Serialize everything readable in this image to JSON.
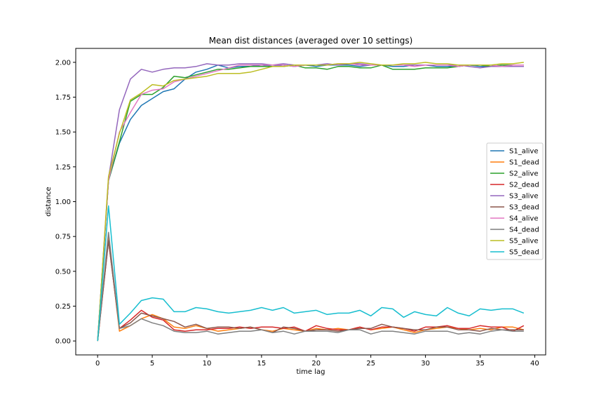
{
  "chart_data": {
    "type": "line",
    "title": "Mean dist distances (averaged over 10 settings)",
    "xlabel": "time lag",
    "ylabel": "distance",
    "xlim": [
      -2,
      41
    ],
    "ylim": [
      -0.1,
      2.1
    ],
    "xticks": [
      0,
      5,
      10,
      15,
      20,
      25,
      30,
      35,
      40
    ],
    "yticks": [
      0.0,
      0.25,
      0.5,
      0.75,
      1.0,
      1.25,
      1.5,
      1.75,
      2.0
    ],
    "ytick_labels": [
      "0.00",
      "0.25",
      "0.50",
      "0.75",
      "1.00",
      "1.25",
      "1.50",
      "1.75",
      "2.00"
    ],
    "grid": false,
    "legend_position": "right",
    "x": [
      0,
      1,
      2,
      3,
      4,
      5,
      6,
      7,
      8,
      9,
      10,
      11,
      12,
      13,
      14,
      15,
      16,
      17,
      18,
      19,
      20,
      21,
      22,
      23,
      24,
      25,
      26,
      27,
      28,
      29,
      30,
      31,
      32,
      33,
      34,
      35,
      36,
      37,
      38,
      39
    ],
    "series": [
      {
        "name": "S1_alive",
        "color": "#1f77b4",
        "values": [
          0.0,
          1.15,
          1.42,
          1.59,
          1.69,
          1.74,
          1.79,
          1.81,
          1.88,
          1.93,
          1.95,
          1.98,
          1.96,
          1.97,
          1.97,
          1.98,
          1.97,
          1.98,
          1.97,
          1.98,
          1.97,
          1.98,
          1.98,
          1.98,
          1.97,
          1.98,
          1.98,
          1.97,
          1.97,
          1.98,
          1.98,
          1.97,
          1.97,
          1.97,
          1.98,
          1.97,
          1.97,
          1.98,
          1.97,
          1.97
        ]
      },
      {
        "name": "S1_dead",
        "color": "#ff7f0e",
        "values": [
          0.0,
          0.74,
          0.07,
          0.11,
          0.16,
          0.19,
          0.16,
          0.1,
          0.09,
          0.11,
          0.09,
          0.07,
          0.08,
          0.09,
          0.1,
          0.08,
          0.07,
          0.09,
          0.08,
          0.07,
          0.09,
          0.08,
          0.09,
          0.08,
          0.1,
          0.08,
          0.09,
          0.1,
          0.08,
          0.06,
          0.08,
          0.09,
          0.1,
          0.09,
          0.08,
          0.09,
          0.08,
          0.1,
          0.1,
          0.08
        ]
      },
      {
        "name": "S2_alive",
        "color": "#2ca02c",
        "values": [
          0.0,
          1.15,
          1.43,
          1.72,
          1.77,
          1.77,
          1.82,
          1.9,
          1.89,
          1.91,
          1.93,
          1.95,
          1.95,
          1.96,
          1.97,
          1.97,
          1.97,
          1.97,
          1.98,
          1.96,
          1.96,
          1.95,
          1.97,
          1.97,
          1.96,
          1.96,
          1.98,
          1.95,
          1.95,
          1.95,
          1.96,
          1.96,
          1.96,
          1.97,
          1.98,
          1.98,
          1.97,
          1.98,
          1.98,
          1.98
        ]
      },
      {
        "name": "S2_dead",
        "color": "#d62728",
        "values": [
          0.0,
          0.72,
          0.09,
          0.15,
          0.22,
          0.17,
          0.15,
          0.08,
          0.07,
          0.08,
          0.08,
          0.09,
          0.09,
          0.1,
          0.09,
          0.1,
          0.1,
          0.09,
          0.1,
          0.07,
          0.11,
          0.09,
          0.08,
          0.08,
          0.1,
          0.08,
          0.1,
          0.1,
          0.09,
          0.07,
          0.1,
          0.1,
          0.11,
          0.09,
          0.09,
          0.11,
          0.1,
          0.1,
          0.07,
          0.11
        ]
      },
      {
        "name": "S3_alive",
        "color": "#9467bd",
        "values": [
          0.0,
          1.17,
          1.66,
          1.88,
          1.95,
          1.93,
          1.95,
          1.96,
          1.96,
          1.97,
          1.99,
          1.98,
          1.98,
          1.99,
          1.99,
          1.99,
          1.98,
          1.99,
          1.98,
          1.98,
          1.98,
          1.99,
          1.98,
          1.99,
          1.99,
          1.98,
          1.98,
          1.98,
          1.98,
          1.98,
          1.98,
          1.98,
          1.98,
          1.98,
          1.97,
          1.96,
          1.97,
          1.97,
          1.97,
          1.97
        ]
      },
      {
        "name": "S3_dead",
        "color": "#8c564b",
        "values": [
          0.0,
          0.72,
          0.09,
          0.13,
          0.2,
          0.18,
          0.16,
          0.14,
          0.1,
          0.12,
          0.09,
          0.1,
          0.1,
          0.09,
          0.1,
          0.08,
          0.06,
          0.1,
          0.09,
          0.07,
          0.08,
          0.08,
          0.07,
          0.08,
          0.09,
          0.09,
          0.12,
          0.1,
          0.09,
          0.08,
          0.08,
          0.1,
          0.1,
          0.08,
          0.08,
          0.07,
          0.09,
          0.08,
          0.08,
          0.08
        ]
      },
      {
        "name": "S4_alive",
        "color": "#e377c2",
        "values": [
          0.0,
          1.15,
          1.5,
          1.64,
          1.77,
          1.8,
          1.81,
          1.86,
          1.88,
          1.9,
          1.92,
          1.94,
          1.96,
          1.98,
          1.98,
          1.98,
          1.98,
          1.98,
          1.97,
          1.98,
          1.98,
          1.98,
          1.99,
          1.99,
          1.98,
          1.98,
          1.98,
          1.98,
          1.98,
          1.97,
          1.98,
          1.98,
          1.98,
          1.97,
          1.98,
          1.98,
          1.98,
          1.97,
          1.98,
          1.98
        ]
      },
      {
        "name": "S4_dead",
        "color": "#7f7f7f",
        "values": [
          0.0,
          0.78,
          0.09,
          0.11,
          0.16,
          0.13,
          0.11,
          0.07,
          0.06,
          0.06,
          0.07,
          0.05,
          0.06,
          0.07,
          0.07,
          0.08,
          0.06,
          0.07,
          0.05,
          0.07,
          0.07,
          0.07,
          0.06,
          0.08,
          0.08,
          0.05,
          0.07,
          0.07,
          0.06,
          0.05,
          0.07,
          0.07,
          0.07,
          0.05,
          0.06,
          0.05,
          0.07,
          0.08,
          0.07,
          0.07
        ]
      },
      {
        "name": "S5_alive",
        "color": "#bcbd22",
        "values": [
          0.0,
          1.18,
          1.49,
          1.73,
          1.78,
          1.84,
          1.83,
          1.87,
          1.88,
          1.89,
          1.9,
          1.92,
          1.92,
          1.92,
          1.93,
          1.95,
          1.97,
          1.97,
          1.98,
          1.98,
          1.98,
          1.98,
          1.99,
          1.99,
          2.0,
          1.99,
          1.98,
          1.98,
          1.99,
          1.99,
          2.0,
          1.99,
          1.99,
          1.98,
          1.98,
          1.98,
          1.98,
          1.99,
          1.99,
          2.0
        ]
      },
      {
        "name": "S5_dead",
        "color": "#17becf",
        "values": [
          0.0,
          0.97,
          0.12,
          0.2,
          0.29,
          0.31,
          0.3,
          0.21,
          0.21,
          0.24,
          0.23,
          0.21,
          0.2,
          0.21,
          0.22,
          0.24,
          0.22,
          0.24,
          0.2,
          0.21,
          0.22,
          0.19,
          0.2,
          0.2,
          0.22,
          0.18,
          0.24,
          0.23,
          0.17,
          0.21,
          0.19,
          0.18,
          0.24,
          0.2,
          0.18,
          0.23,
          0.22,
          0.23,
          0.23,
          0.2
        ]
      }
    ]
  }
}
